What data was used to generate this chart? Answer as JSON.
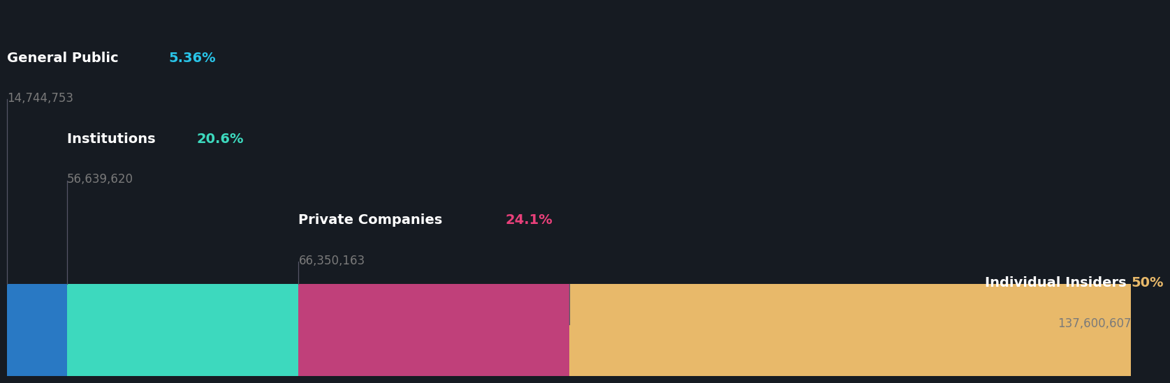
{
  "categories": [
    "General Public",
    "Institutions",
    "Private Companies",
    "Individual Insiders"
  ],
  "percentages": [
    5.36,
    20.6,
    24.1,
    50.0
  ],
  "pct_labels": [
    "5.36%",
    "20.6%",
    "24.1%",
    "50%"
  ],
  "share_counts": [
    "14,744,753",
    "56,639,620",
    "66,350,163",
    "137,600,607"
  ],
  "bar_colors": [
    "#2979c4",
    "#3dd9be",
    "#c0407a",
    "#e8b96a"
  ],
  "pct_colors": [
    "#29c4e8",
    "#3dd9be",
    "#e8407a",
    "#e8b96a"
  ],
  "background_color": "#161b22",
  "label_color": "#ffffff",
  "count_color": "#7a7a7a",
  "bar_height": 0.25,
  "label_name_fontsize": 14,
  "label_pct_fontsize": 14,
  "label_count_fontsize": 12,
  "vertical_line_color": "#555566"
}
